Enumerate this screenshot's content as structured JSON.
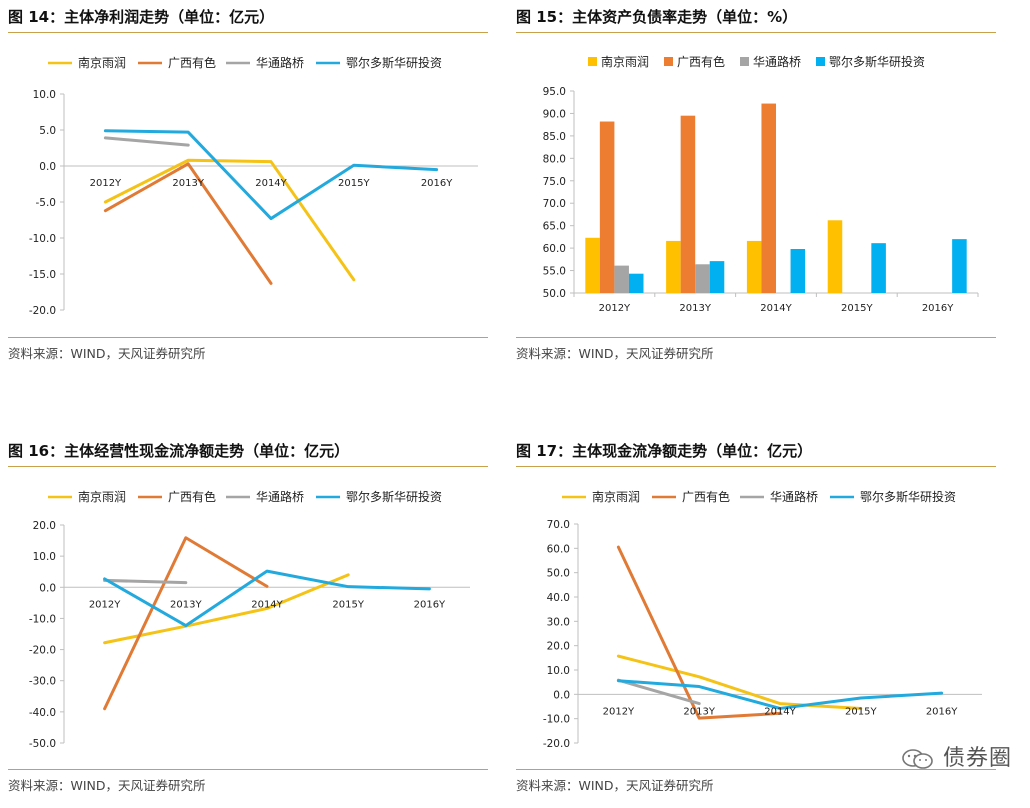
{
  "panels": [
    {
      "id": "p14",
      "title": "图 14：主体净利润走势（单位：亿元）",
      "source": "资料来源：WIND，天风证券研究所"
    },
    {
      "id": "p15",
      "title": "图 15：主体资产负债率走势（单位：%）",
      "source": "资料来源：WIND，天风证券研究所"
    },
    {
      "id": "p16",
      "title": "图 16：主体经营性现金流净额走势（单位：亿元）",
      "source": "资料来源：WIND，天风证券研究所"
    },
    {
      "id": "p17",
      "title": "图 17：主体现金流净额走势（单位：亿元）",
      "source": "资料来源：WIND，天风证券研究所"
    }
  ],
  "watermark": "债券圈",
  "chart_data": [
    {
      "type": "line",
      "title": "图 14：主体净利润走势（单位：亿元）",
      "categories": [
        "2012Y",
        "2013Y",
        "2014Y",
        "2015Y",
        "2016Y"
      ],
      "ylim": [
        -20,
        10
      ],
      "yticks": [
        10.0,
        5.0,
        0.0,
        -5.0,
        -10.0,
        -15.0,
        -20.0
      ],
      "ylabel": "",
      "xlabel": "",
      "legend": "top",
      "series": [
        {
          "name": "南京雨润",
          "color": "#f5c216",
          "values": [
            -5.0,
            0.8,
            0.6,
            -15.8,
            null
          ]
        },
        {
          "name": "广西有色",
          "color": "#e07a35",
          "values": [
            -6.2,
            0.3,
            -16.3,
            null,
            null
          ]
        },
        {
          "name": "华通路桥",
          "color": "#a5a5a5",
          "values": [
            3.9,
            2.9,
            null,
            null,
            null
          ]
        },
        {
          "name": "鄂尔多斯华研投资",
          "color": "#22a9dd",
          "values": [
            4.9,
            4.7,
            -7.3,
            0.1,
            -0.5
          ]
        }
      ]
    },
    {
      "type": "bar",
      "title": "图 15：主体资产负债率走势（单位：%）",
      "categories": [
        "2012Y",
        "2013Y",
        "2014Y",
        "2015Y",
        "2016Y"
      ],
      "ylim": [
        50,
        95
      ],
      "yticks": [
        95.0,
        90.0,
        85.0,
        80.0,
        75.0,
        70.0,
        65.0,
        60.0,
        55.0,
        50.0
      ],
      "ylabel": "",
      "xlabel": "",
      "legend": "top",
      "series": [
        {
          "name": "南京雨润",
          "color": "#ffc000",
          "values": [
            62.3,
            61.6,
            61.6,
            66.2,
            null
          ]
        },
        {
          "name": "广西有色",
          "color": "#ed7d31",
          "values": [
            88.2,
            89.5,
            92.2,
            null,
            null
          ]
        },
        {
          "name": "华通路桥",
          "color": "#a5a5a5",
          "values": [
            56.1,
            56.4,
            null,
            null,
            null
          ]
        },
        {
          "name": "鄂尔多斯华研投资",
          "color": "#00b0f0",
          "values": [
            54.3,
            57.1,
            59.8,
            61.1,
            62.0
          ]
        }
      ]
    },
    {
      "type": "line",
      "title": "图 16：主体经营性现金流净额走势（单位：亿元）",
      "categories": [
        "2012Y",
        "2013Y",
        "2014Y",
        "2015Y",
        "2016Y"
      ],
      "ylim": [
        -50,
        20
      ],
      "yticks": [
        20.0,
        10.0,
        0.0,
        -10.0,
        -20.0,
        -30.0,
        -40.0,
        -50.0
      ],
      "ylabel": "",
      "xlabel": "",
      "legend": "top",
      "series": [
        {
          "name": "南京雨润",
          "color": "#f5c216",
          "values": [
            -17.8,
            -12.5,
            -6.8,
            4.0,
            null
          ]
        },
        {
          "name": "广西有色",
          "color": "#e07a35",
          "values": [
            -39.0,
            15.9,
            0.3,
            null,
            null
          ]
        },
        {
          "name": "华通路桥",
          "color": "#a5a5a5",
          "values": [
            2.2,
            1.5,
            null,
            null,
            null
          ]
        },
        {
          "name": "鄂尔多斯华研投资",
          "color": "#22a9dd",
          "values": [
            2.7,
            -12.3,
            5.2,
            0.2,
            -0.5
          ]
        }
      ]
    },
    {
      "type": "line",
      "title": "图 17：主体现金流净额走势（单位：亿元）",
      "categories": [
        "2012Y",
        "2013Y",
        "2014Y",
        "2015Y",
        "2016Y"
      ],
      "ylim": [
        -20,
        70
      ],
      "yticks": [
        70.0,
        60.0,
        50.0,
        40.0,
        30.0,
        20.0,
        10.0,
        0.0,
        -10.0,
        -20.0
      ],
      "ylabel": "",
      "xlabel": "",
      "legend": "top",
      "series": [
        {
          "name": "南京雨润",
          "color": "#f5c216",
          "values": [
            15.7,
            7.2,
            -3.8,
            -5.8,
            null
          ]
        },
        {
          "name": "广西有色",
          "color": "#e07a35",
          "values": [
            60.5,
            -9.8,
            -7.8,
            null,
            null
          ]
        },
        {
          "name": "华通路桥",
          "color": "#a5a5a5",
          "values": [
            5.8,
            -3.8,
            null,
            null,
            null
          ]
        },
        {
          "name": "鄂尔多斯华研投资",
          "color": "#22a9dd",
          "values": [
            5.6,
            3.2,
            -5.8,
            -1.5,
            0.5
          ]
        }
      ]
    }
  ]
}
